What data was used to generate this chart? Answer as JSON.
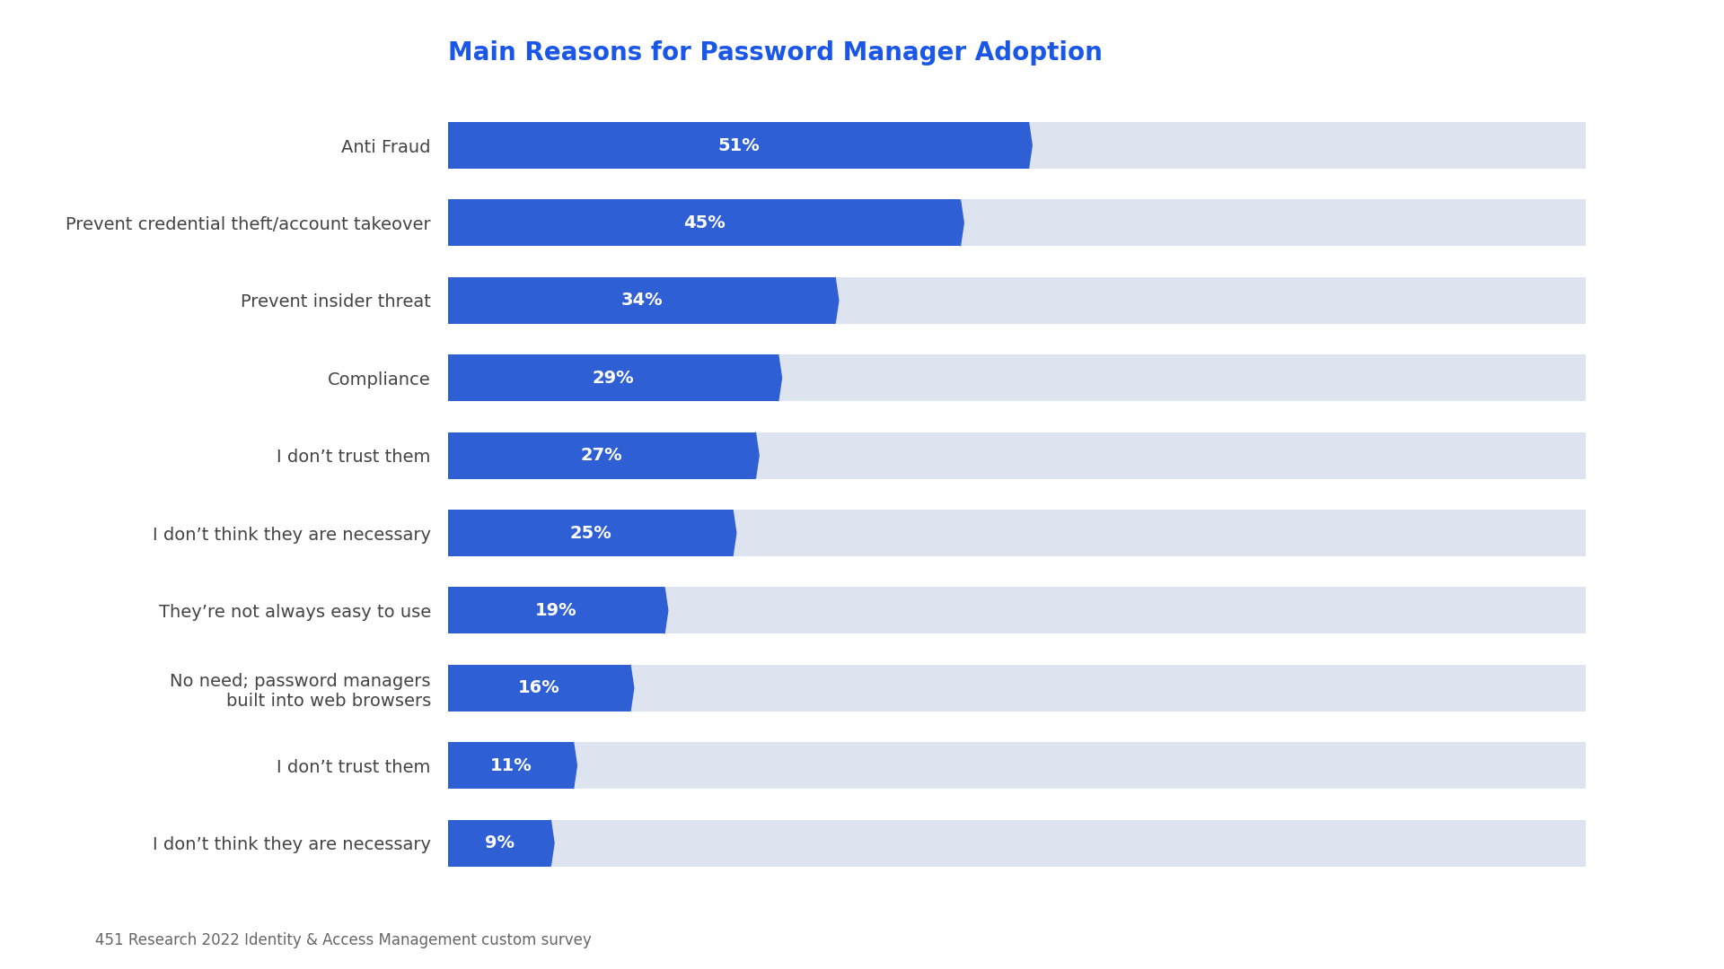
{
  "title": "Main Reasons for Password Manager Adoption",
  "title_color": "#1a56e8",
  "title_fontsize": 20,
  "categories": [
    "Anti Fraud",
    "Prevent credential theft/account takeover",
    "Prevent insider threat",
    "Compliance",
    "I don’t trust them",
    "I don’t think they are necessary",
    "They’re not always easy to use",
    "No need; password managers\nbuilt into web browsers",
    "I don’t trust them",
    "I don’t think they are necessary"
  ],
  "values": [
    51,
    45,
    34,
    29,
    27,
    25,
    19,
    16,
    11,
    9
  ],
  "bar_color": "#2f5fd4",
  "bg_bar_color": "#dde3ef",
  "text_color": "#ffffff",
  "label_color": "#444444",
  "max_value": 100,
  "bar_height": 0.6,
  "footnote": "451 Research 2022 Identity & Access Management custom survey",
  "footnote_color": "#666666",
  "footnote_fontsize": 12,
  "label_fontsize": 14,
  "value_fontsize": 14
}
